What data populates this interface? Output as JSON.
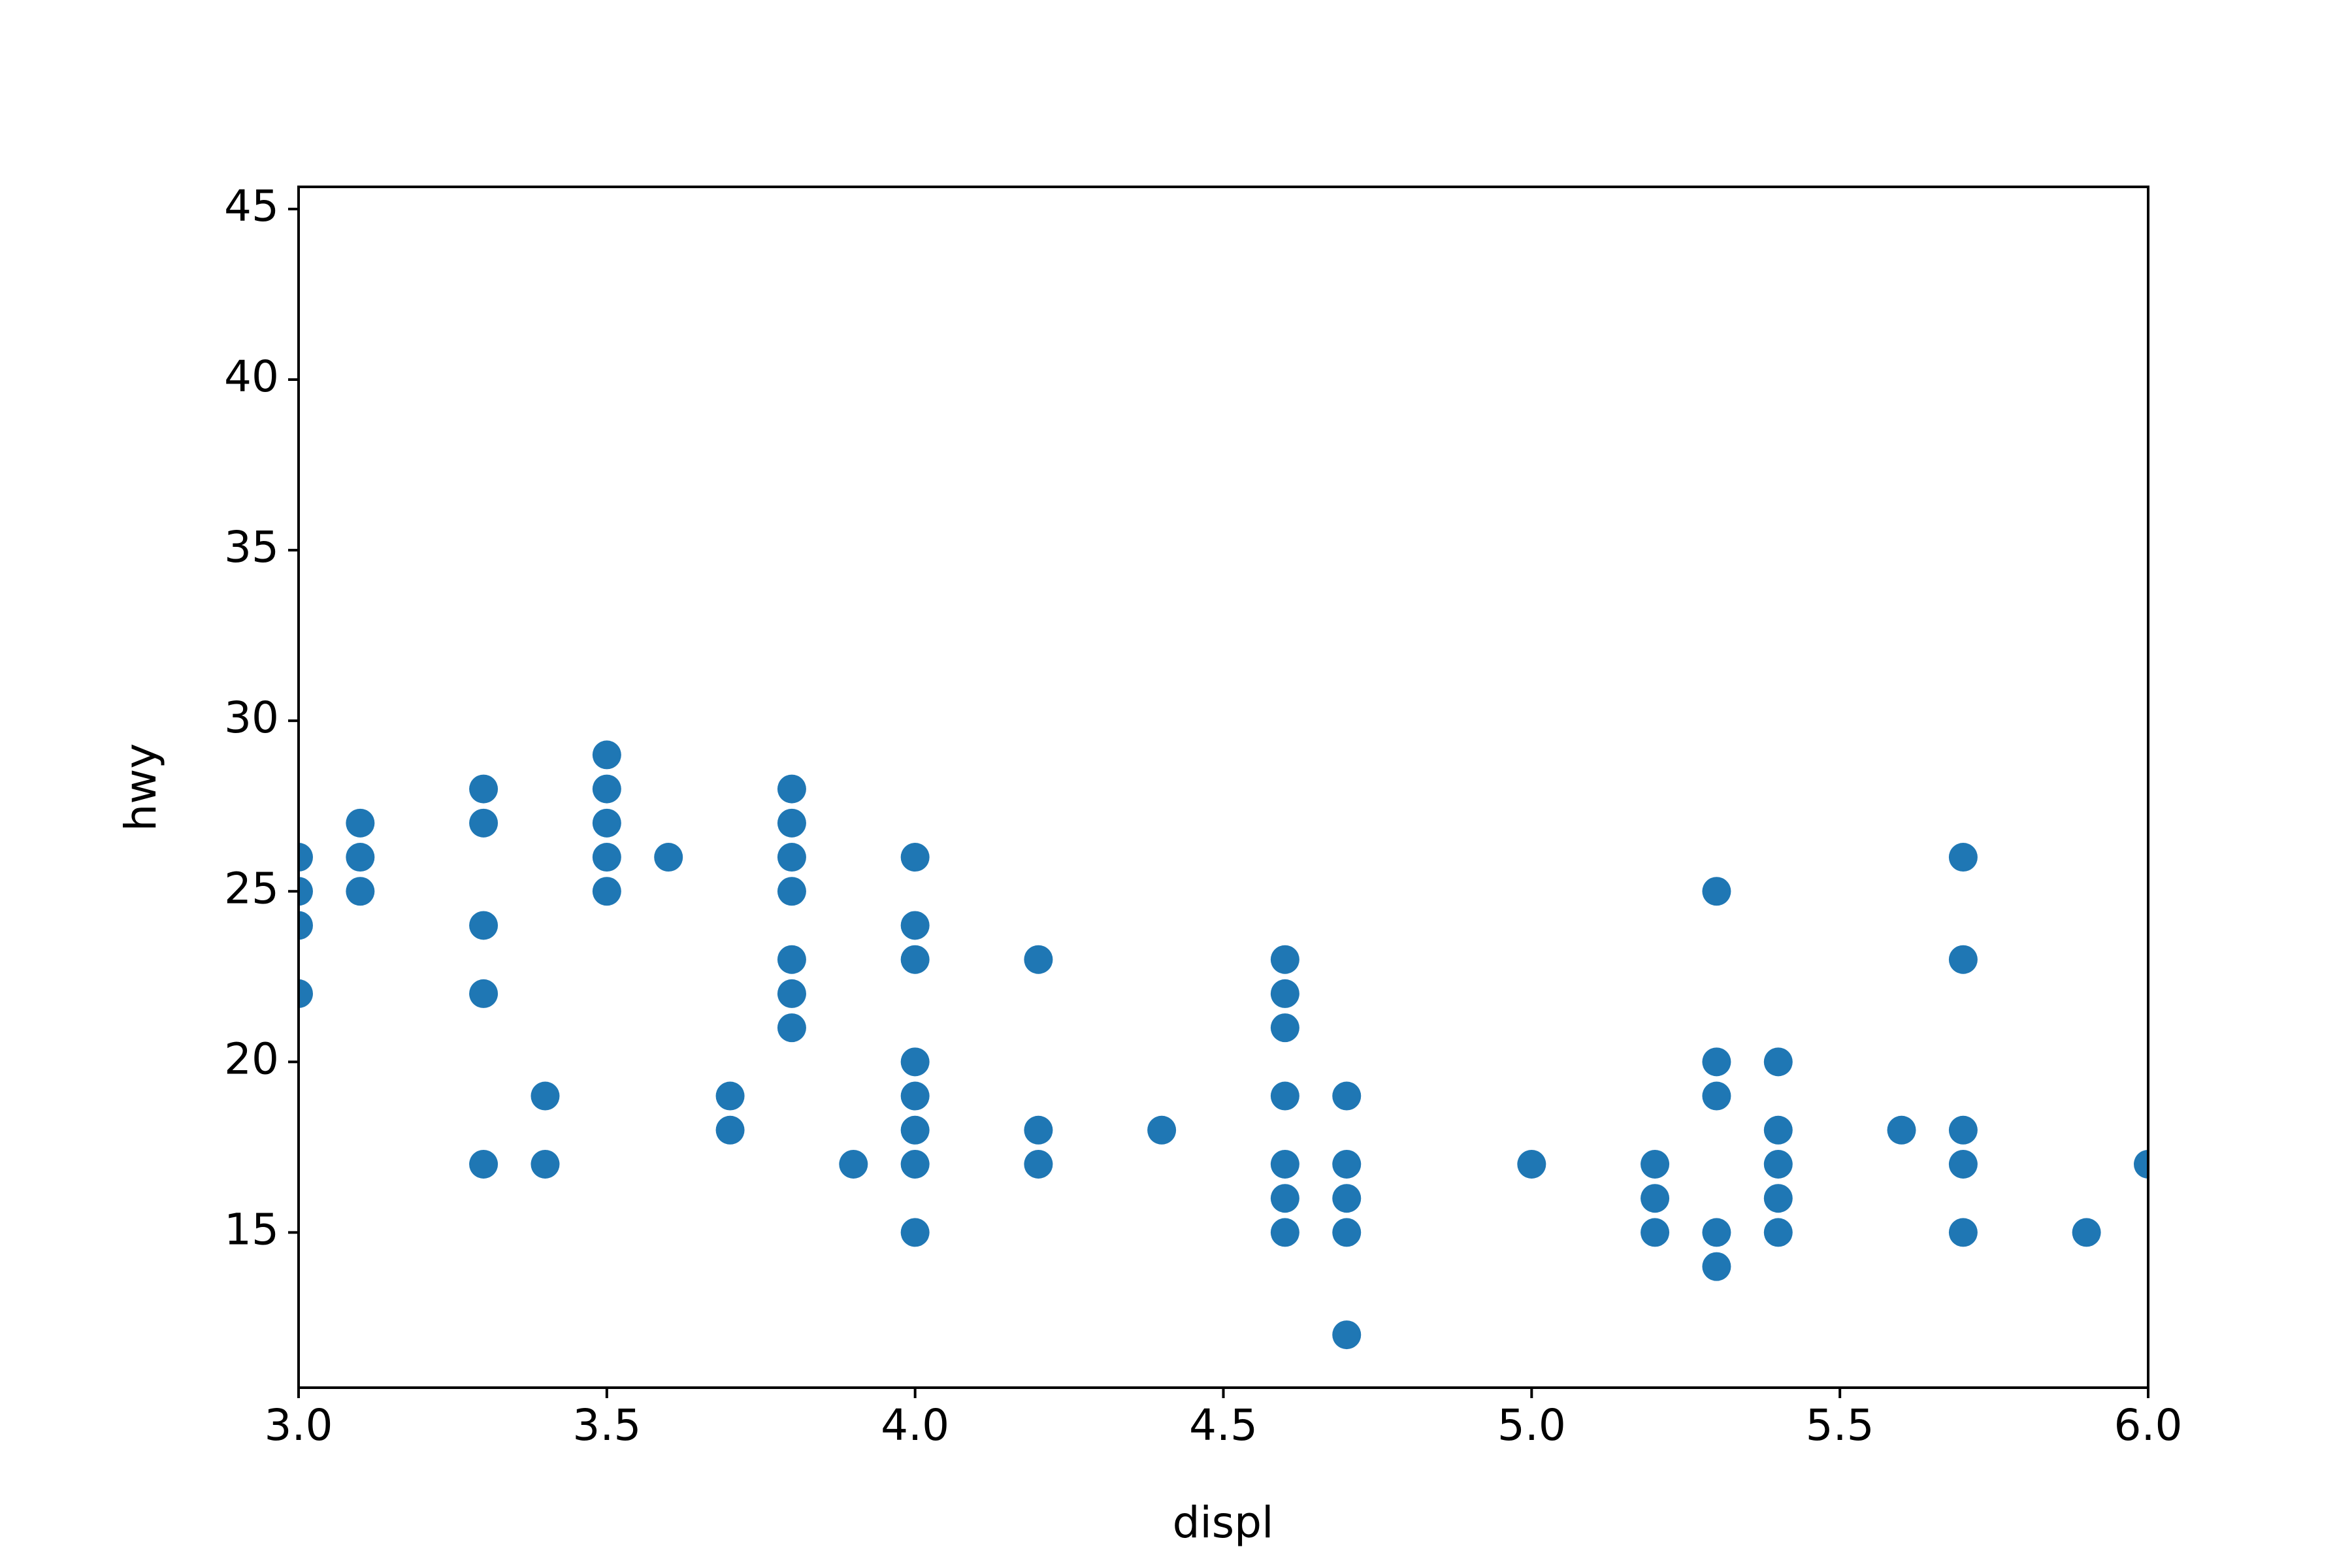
{
  "chart_data": {
    "type": "scatter",
    "x_label": "displ",
    "y_label": "hwy",
    "color": "#1f77b4",
    "x": [
      3.0,
      3.0,
      3.0,
      3.0,
      3.1,
      3.1,
      3.1,
      3.3,
      3.3,
      3.3,
      3.3,
      3.3,
      3.4,
      3.4,
      3.5,
      3.5,
      3.5,
      3.5,
      3.5,
      3.6,
      3.7,
      3.7,
      3.8,
      3.8,
      3.8,
      3.8,
      3.8,
      3.8,
      3.8,
      3.9,
      4.0,
      4.0,
      4.0,
      4.0,
      4.0,
      4.0,
      4.0,
      4.0,
      4.2,
      4.2,
      4.2,
      4.4,
      4.6,
      4.6,
      4.6,
      4.6,
      4.6,
      4.6,
      4.6,
      4.7,
      4.7,
      4.7,
      4.7,
      4.7,
      5.0,
      5.2,
      5.2,
      5.2,
      5.3,
      5.3,
      5.3,
      5.3,
      5.3,
      5.4,
      5.4,
      5.4,
      5.4,
      5.4,
      5.6,
      5.7,
      5.7,
      5.7,
      5.7,
      5.7,
      5.9,
      6.0
    ],
    "values": [
      26,
      25,
      24,
      22,
      27,
      26,
      25,
      28,
      27,
      24,
      22,
      17,
      19,
      17,
      29,
      28,
      27,
      26,
      25,
      26,
      19,
      18,
      28,
      27,
      26,
      25,
      23,
      22,
      21,
      17,
      26,
      24,
      23,
      20,
      19,
      18,
      17,
      15,
      23,
      18,
      17,
      18,
      23,
      22,
      21,
      19,
      17,
      16,
      15,
      19,
      17,
      16,
      15,
      12,
      17,
      17,
      16,
      15,
      25,
      20,
      19,
      15,
      14,
      20,
      18,
      17,
      16,
      15,
      18,
      26,
      23,
      18,
      17,
      15,
      15,
      17
    ],
    "xlim": [
      3.0,
      6.0
    ],
    "xticks": [
      {
        "value": 3.0,
        "label": "3.0"
      },
      3.5,
      {
        "value": 4.0,
        "label": "4.0"
      },
      4.5,
      {
        "value": 5.0,
        "label": "5.0"
      },
      5.5,
      {
        "value": 6.0,
        "label": "6.0"
      }
    ],
    "ylim": [
      10.45,
      45.65
    ],
    "yticks": [
      15,
      20,
      25,
      30,
      35,
      40,
      45
    ]
  }
}
